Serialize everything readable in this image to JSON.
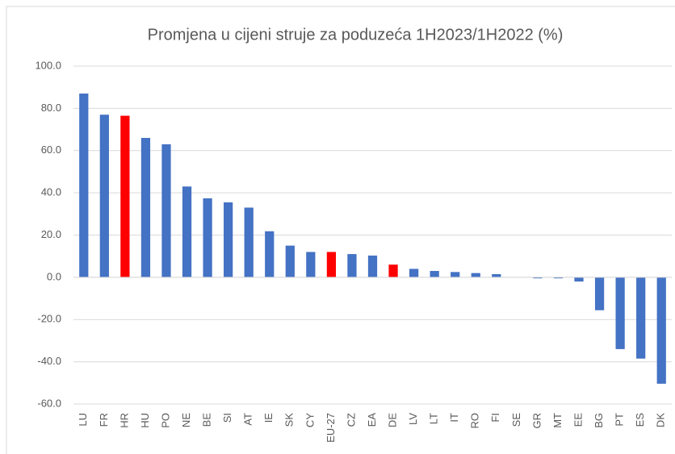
{
  "chart_data": {
    "type": "bar",
    "title": "Promjena u cijeni struje za poduzeća 1H2023/1H2022 (%)",
    "categories": [
      "LU",
      "FR",
      "HR",
      "HU",
      "PO",
      "NE",
      "BE",
      "SI",
      "AT",
      "IE",
      "SK",
      "CY",
      "EU-27",
      "CZ",
      "EA",
      "DE",
      "LV",
      "LT",
      "IT",
      "RO",
      "FI",
      "SE",
      "GR",
      "MT",
      "EE",
      "BG",
      "PT",
      "ES",
      "DK"
    ],
    "values": [
      87,
      77,
      76.5,
      66,
      63,
      43,
      37.4,
      35.5,
      33,
      21.8,
      15,
      12,
      12,
      11,
      10.3,
      6,
      4,
      3,
      2.5,
      2,
      1.5,
      0,
      -0.5,
      -0.5,
      -2,
      -15.6,
      -34,
      -38.5,
      -50.4
    ],
    "colors": [
      "#4472c4",
      "#4472c4",
      "#ff0000",
      "#4472c4",
      "#4472c4",
      "#4472c4",
      "#4472c4",
      "#4472c4",
      "#4472c4",
      "#4472c4",
      "#4472c4",
      "#4472c4",
      "#ff0000",
      "#4472c4",
      "#4472c4",
      "#ff0000",
      "#4472c4",
      "#4472c4",
      "#4472c4",
      "#4472c4",
      "#4472c4",
      "#4472c4",
      "#4472c4",
      "#4472c4",
      "#4472c4",
      "#4472c4",
      "#4472c4",
      "#4472c4",
      "#4472c4"
    ],
    "ylim": [
      -60,
      100
    ],
    "yticks": [
      {
        "value": -60,
        "label": "-60.0"
      },
      {
        "value": -40,
        "label": "-40.0"
      },
      {
        "value": -20,
        "label": "-20.0"
      },
      {
        "value": 0,
        "label": "0.0"
      },
      {
        "value": 20,
        "label": "20.0"
      },
      {
        "value": 40,
        "label": "40.0"
      },
      {
        "value": 60,
        "label": "60.0"
      },
      {
        "value": 80,
        "label": "80.0"
      },
      {
        "value": 100,
        "label": "100.0"
      }
    ],
    "grid": true
  }
}
